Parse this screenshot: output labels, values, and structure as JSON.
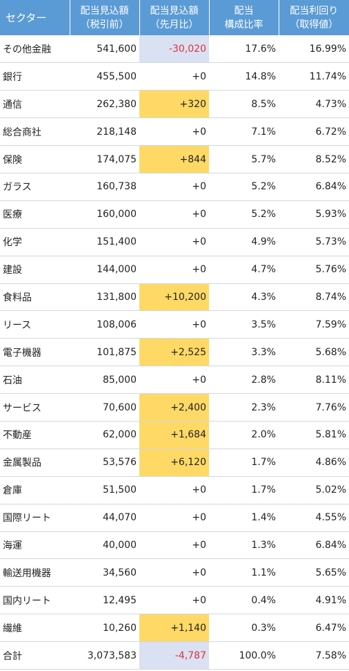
{
  "header": {
    "sector": "セクター",
    "dividend": [
      "配当見込額",
      "（税引前）"
    ],
    "change": [
      "配当見込額",
      "（先月比）"
    ],
    "ratio": [
      "配当",
      "構成比率"
    ],
    "yield": [
      "配当利回り",
      "（取得値）"
    ]
  },
  "rows": [
    {
      "sector": "その他金融",
      "dividend": "541,600",
      "change": "-30,020",
      "ratio": "17.6%",
      "yield": "16.99%",
      "hl": "blue",
      "neg": true
    },
    {
      "sector": "銀行",
      "dividend": "455,500",
      "change": "+0",
      "ratio": "14.8%",
      "yield": "11.74%",
      "hl": "",
      "neg": false
    },
    {
      "sector": "通信",
      "dividend": "262,380",
      "change": "+320",
      "ratio": "8.5%",
      "yield": "4.73%",
      "hl": "orange",
      "neg": false
    },
    {
      "sector": "総合商社",
      "dividend": "218,148",
      "change": "+0",
      "ratio": "7.1%",
      "yield": "6.72%",
      "hl": "",
      "neg": false
    },
    {
      "sector": "保険",
      "dividend": "174,075",
      "change": "+844",
      "ratio": "5.7%",
      "yield": "8.52%",
      "hl": "orange",
      "neg": false
    },
    {
      "sector": "ガラス",
      "dividend": "160,738",
      "change": "+0",
      "ratio": "5.2%",
      "yield": "6.84%",
      "hl": "",
      "neg": false
    },
    {
      "sector": "医療",
      "dividend": "160,000",
      "change": "+0",
      "ratio": "5.2%",
      "yield": "5.93%",
      "hl": "",
      "neg": false
    },
    {
      "sector": "化学",
      "dividend": "151,400",
      "change": "+0",
      "ratio": "4.9%",
      "yield": "5.73%",
      "hl": "",
      "neg": false
    },
    {
      "sector": "建設",
      "dividend": "144,000",
      "change": "+0",
      "ratio": "4.7%",
      "yield": "5.76%",
      "hl": "",
      "neg": false
    },
    {
      "sector": "食料品",
      "dividend": "131,800",
      "change": "+10,200",
      "ratio": "4.3%",
      "yield": "8.74%",
      "hl": "orange",
      "neg": false
    },
    {
      "sector": "リース",
      "dividend": "108,006",
      "change": "+0",
      "ratio": "3.5%",
      "yield": "7.59%",
      "hl": "",
      "neg": false
    },
    {
      "sector": "電子機器",
      "dividend": "101,875",
      "change": "+2,525",
      "ratio": "3.3%",
      "yield": "5.68%",
      "hl": "orange",
      "neg": false
    },
    {
      "sector": "石油",
      "dividend": "85,000",
      "change": "+0",
      "ratio": "2.8%",
      "yield": "8.11%",
      "hl": "",
      "neg": false
    },
    {
      "sector": "サービス",
      "dividend": "70,600",
      "change": "+2,400",
      "ratio": "2.3%",
      "yield": "7.76%",
      "hl": "orange",
      "neg": false
    },
    {
      "sector": "不動産",
      "dividend": "62,000",
      "change": "+1,684",
      "ratio": "2.0%",
      "yield": "5.81%",
      "hl": "orange",
      "neg": false
    },
    {
      "sector": "金属製品",
      "dividend": "53,576",
      "change": "+6,120",
      "ratio": "1.7%",
      "yield": "4.86%",
      "hl": "orange",
      "neg": false
    },
    {
      "sector": "倉庫",
      "dividend": "51,500",
      "change": "+0",
      "ratio": "1.7%",
      "yield": "5.02%",
      "hl": "",
      "neg": false
    },
    {
      "sector": "国際リート",
      "dividend": "44,070",
      "change": "+0",
      "ratio": "1.4%",
      "yield": "4.55%",
      "hl": "",
      "neg": false
    },
    {
      "sector": "海運",
      "dividend": "40,000",
      "change": "+0",
      "ratio": "1.3%",
      "yield": "6.84%",
      "hl": "",
      "neg": false
    },
    {
      "sector": "輸送用機器",
      "dividend": "34,560",
      "change": "+0",
      "ratio": "1.1%",
      "yield": "5.65%",
      "hl": "",
      "neg": false
    },
    {
      "sector": "国内リート",
      "dividend": "12,495",
      "change": "+0",
      "ratio": "0.4%",
      "yield": "4.91%",
      "hl": "",
      "neg": false
    },
    {
      "sector": "繊維",
      "dividend": "10,260",
      "change": "+1,140",
      "ratio": "0.3%",
      "yield": "6.47%",
      "hl": "orange",
      "neg": false
    },
    {
      "sector": "合計",
      "dividend": "3,073,583",
      "change": "-4,787",
      "ratio": "100.0%",
      "yield": "7.58%",
      "hl": "blue",
      "neg": true
    }
  ],
  "colors": {
    "header_bg": "#5b9bd5",
    "highlight_orange": "#ffd966",
    "highlight_blue": "#d9e1f2",
    "negative_text": "#e0303a"
  }
}
